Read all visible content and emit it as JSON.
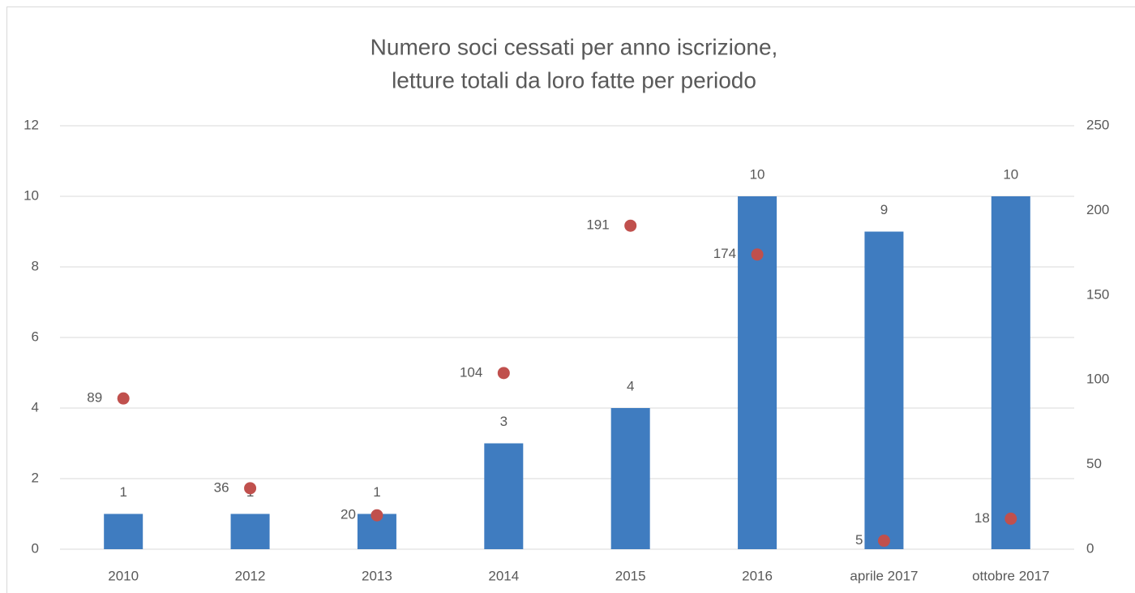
{
  "chart_data": {
    "type": "combo",
    "title": [
      "Numero soci cessati per anno iscrizione,",
      "letture totali da loro fatte per periodo"
    ],
    "categories": [
      "2010",
      "2012",
      "2013",
      "2014",
      "2015",
      "2016",
      "aprile 2017",
      "ottobre 2017"
    ],
    "series": [
      {
        "type": "bar",
        "color": "#3f7cc0",
        "values": [
          1,
          1,
          1,
          3,
          4,
          10,
          9,
          10
        ]
      },
      {
        "type": "scatter",
        "color": "#c0504d",
        "axis": "y2",
        "values": [
          89,
          36,
          20,
          104,
          191,
          174,
          5,
          18
        ]
      }
    ],
    "ylim": [
      0,
      12
    ],
    "yticks": [
      0,
      2,
      4,
      6,
      8,
      10,
      12
    ],
    "y2lim": [
      0,
      250
    ],
    "y2ticks": [
      0,
      50,
      100,
      150,
      200,
      250
    ],
    "grid": true
  }
}
